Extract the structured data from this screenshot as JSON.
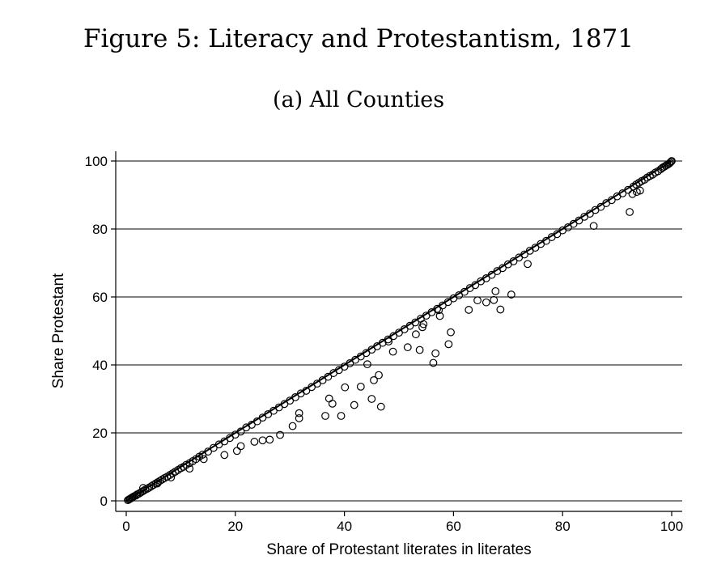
{
  "figure": {
    "title": "Figure 5: Literacy and Protestantism, 1871",
    "subtitle": "(a) All Counties"
  },
  "chart_data": {
    "type": "scatter",
    "xlabel": "Share of Protestant literates in literates",
    "ylabel": "Share Protestant",
    "xlim": [
      0,
      100
    ],
    "ylim": [
      0,
      100
    ],
    "xticks": [
      0,
      20,
      40,
      60,
      80,
      100
    ],
    "yticks": [
      0,
      20,
      40,
      60,
      80,
      100
    ],
    "grid": "horizontal",
    "marker": "hollow-circle",
    "fit_line": {
      "x": [
        0,
        100
      ],
      "y": [
        0,
        100
      ]
    },
    "points": [
      [
        0.3,
        0.2
      ],
      [
        0.5,
        0.4
      ],
      [
        0.7,
        0.6
      ],
      [
        0.9,
        0.8
      ],
      [
        1.1,
        1.0
      ],
      [
        1.3,
        1.2
      ],
      [
        1.5,
        1.4
      ],
      [
        1.8,
        1.6
      ],
      [
        2.0,
        1.9
      ],
      [
        2.3,
        2.1
      ],
      [
        2.6,
        2.4
      ],
      [
        2.9,
        2.7
      ],
      [
        3.2,
        3.0
      ],
      [
        3.5,
        3.3
      ],
      [
        3.9,
        3.6
      ],
      [
        4.2,
        3.9
      ],
      [
        4.6,
        4.3
      ],
      [
        5.0,
        4.7
      ],
      [
        5.4,
        5.1
      ],
      [
        5.8,
        5.5
      ],
      [
        6.2,
        5.9
      ],
      [
        6.6,
        6.3
      ],
      [
        7.0,
        6.7
      ],
      [
        7.5,
        7.1
      ],
      [
        8.0,
        7.6
      ],
      [
        8.5,
        8.1
      ],
      [
        9.0,
        8.6
      ],
      [
        9.5,
        9.1
      ],
      [
        10.0,
        9.6
      ],
      [
        10.5,
        10.0
      ],
      [
        11.0,
        10.6
      ],
      [
        11.6,
        11.1
      ],
      [
        12.2,
        11.7
      ],
      [
        12.8,
        12.3
      ],
      [
        13.4,
        13.0
      ],
      [
        14.0,
        13.6
      ],
      [
        15.0,
        14.5
      ],
      [
        16.0,
        15.6
      ],
      [
        17.0,
        16.6
      ],
      [
        18.0,
        17.5
      ],
      [
        19.0,
        18.5
      ],
      [
        20.0,
        19.5
      ],
      [
        21.0,
        20.4
      ],
      [
        22.0,
        21.6
      ],
      [
        23.0,
        22.4
      ],
      [
        24.0,
        23.4
      ],
      [
        25.0,
        24.5
      ],
      [
        26.0,
        25.5
      ],
      [
        27.0,
        26.5
      ],
      [
        28.0,
        27.5
      ],
      [
        29.0,
        28.5
      ],
      [
        30.0,
        29.5
      ],
      [
        31.0,
        30.5
      ],
      [
        32.0,
        31.6
      ],
      [
        33.0,
        32.4
      ],
      [
        34.0,
        33.5
      ],
      [
        35.0,
        34.5
      ],
      [
        36.0,
        35.5
      ],
      [
        37.0,
        36.5
      ],
      [
        38.0,
        37.6
      ],
      [
        39.0,
        38.5
      ],
      [
        40.0,
        39.5
      ],
      [
        41.0,
        40.5
      ],
      [
        42.0,
        41.5
      ],
      [
        43.0,
        42.5
      ],
      [
        44.0,
        43.5
      ],
      [
        45.0,
        44.5
      ],
      [
        46.0,
        45.5
      ],
      [
        47.0,
        46.5
      ],
      [
        48.0,
        47.5
      ],
      [
        49.0,
        48.5
      ],
      [
        50.0,
        49.5
      ],
      [
        51.0,
        50.5
      ],
      [
        52.0,
        51.5
      ],
      [
        53.0,
        52.5
      ],
      [
        54.0,
        53.6
      ],
      [
        55.0,
        54.5
      ],
      [
        56.0,
        55.5
      ],
      [
        57.0,
        56.5
      ],
      [
        58.0,
        57.5
      ],
      [
        59.0,
        58.5
      ],
      [
        60.0,
        59.6
      ],
      [
        61.0,
        60.5
      ],
      [
        62.0,
        61.5
      ],
      [
        63.0,
        62.6
      ],
      [
        64.0,
        63.5
      ],
      [
        65.0,
        64.6
      ],
      [
        66.0,
        65.5
      ],
      [
        67.0,
        66.5
      ],
      [
        68.0,
        67.6
      ],
      [
        69.0,
        68.5
      ],
      [
        70.0,
        69.6
      ],
      [
        71.0,
        70.5
      ],
      [
        72.0,
        71.6
      ],
      [
        73.0,
        72.5
      ],
      [
        74.0,
        73.6
      ],
      [
        75.0,
        74.5
      ],
      [
        76.0,
        75.6
      ],
      [
        77.0,
        76.5
      ],
      [
        78.0,
        77.6
      ],
      [
        79.0,
        78.5
      ],
      [
        80.0,
        79.6
      ],
      [
        81.0,
        80.5
      ],
      [
        82.0,
        81.5
      ],
      [
        83.0,
        82.5
      ],
      [
        84.0,
        83.6
      ],
      [
        85.0,
        84.5
      ],
      [
        86.0,
        85.6
      ],
      [
        87.0,
        86.5
      ],
      [
        88.0,
        87.6
      ],
      [
        89.0,
        88.5
      ],
      [
        90.0,
        89.6
      ],
      [
        91.0,
        90.5
      ],
      [
        92.0,
        91.5
      ],
      [
        93.0,
        92.5
      ],
      [
        93.5,
        93.1
      ],
      [
        94.0,
        93.6
      ],
      [
        94.5,
        94.1
      ],
      [
        95.0,
        94.5
      ],
      [
        95.5,
        95.1
      ],
      [
        96.0,
        95.6
      ],
      [
        96.5,
        96.0
      ],
      [
        97.0,
        96.6
      ],
      [
        97.5,
        97.0
      ],
      [
        98.0,
        97.6
      ],
      [
        98.3,
        98.0
      ],
      [
        98.6,
        98.3
      ],
      [
        98.9,
        98.6
      ],
      [
        99.2,
        98.9
      ],
      [
        99.5,
        99.2
      ],
      [
        99.7,
        99.5
      ],
      [
        99.9,
        99.8
      ],
      [
        100.0,
        100.0
      ],
      [
        3.1,
        3.8
      ],
      [
        5.7,
        5.1
      ],
      [
        8.2,
        6.9
      ],
      [
        11.6,
        9.5
      ],
      [
        14.2,
        12.3
      ],
      [
        20.3,
        14.7
      ],
      [
        21.0,
        16.1
      ],
      [
        23.5,
        17.4
      ],
      [
        25.0,
        17.8
      ],
      [
        26.3,
        18.0
      ],
      [
        28.2,
        19.4
      ],
      [
        18.0,
        13.5
      ],
      [
        30.5,
        22.0
      ],
      [
        31.7,
        24.3
      ],
      [
        31.7,
        25.8
      ],
      [
        36.5,
        25.0
      ],
      [
        37.2,
        30.1
      ],
      [
        37.8,
        28.6
      ],
      [
        39.4,
        25.0
      ],
      [
        40.1,
        33.4
      ],
      [
        41.8,
        28.2
      ],
      [
        43.0,
        33.6
      ],
      [
        44.2,
        40.2
      ],
      [
        45.0,
        30.0
      ],
      [
        45.4,
        35.5
      ],
      [
        46.3,
        37.0
      ],
      [
        46.7,
        27.7
      ],
      [
        48.1,
        46.9
      ],
      [
        48.9,
        43.9
      ],
      [
        51.6,
        45.2
      ],
      [
        53.1,
        49.0
      ],
      [
        53.8,
        44.4
      ],
      [
        54.3,
        51.1
      ],
      [
        54.5,
        52.0
      ],
      [
        56.3,
        40.6
      ],
      [
        56.7,
        43.4
      ],
      [
        57.3,
        56.1
      ],
      [
        57.5,
        54.4
      ],
      [
        59.1,
        46.1
      ],
      [
        59.5,
        49.6
      ],
      [
        62.8,
        56.2
      ],
      [
        64.4,
        59.0
      ],
      [
        66.0,
        58.4
      ],
      [
        67.4,
        59.1
      ],
      [
        67.7,
        61.7
      ],
      [
        68.6,
        56.3
      ],
      [
        70.6,
        60.7
      ],
      [
        73.6,
        69.7
      ],
      [
        85.7,
        80.9
      ],
      [
        92.3,
        85.0
      ],
      [
        92.8,
        90.3
      ],
      [
        93.6,
        90.9
      ],
      [
        94.2,
        91.3
      ]
    ]
  }
}
